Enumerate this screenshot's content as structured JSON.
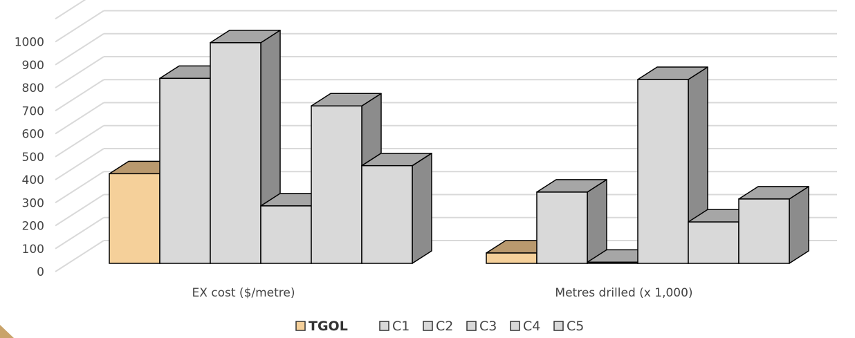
{
  "chart_data": {
    "type": "bar",
    "style": "3d-clustered-column",
    "categories": [
      "EX cost ($/metre)",
      "Metres drilled (x 1,000)"
    ],
    "series": [
      {
        "name": "TGOL",
        "values": [
          390,
          45
        ],
        "color": "#f5d09a",
        "top_color": "#b9996e",
        "bold_legend": true
      },
      {
        "name": "C1",
        "values": [
          805,
          310
        ],
        "color": "#d9d9d9"
      },
      {
        "name": "C2",
        "values": [
          960,
          5
        ],
        "color": "#d9d9d9"
      },
      {
        "name": "C3",
        "values": [
          250,
          800
        ],
        "color": "#d9d9d9"
      },
      {
        "name": "C4",
        "values": [
          685,
          180
        ],
        "color": "#d9d9d9"
      },
      {
        "name": "C5",
        "values": [
          425,
          280
        ],
        "color": "#d9d9d9"
      }
    ],
    "yticks": [
      0,
      100,
      200,
      300,
      400,
      500,
      600,
      700,
      800,
      900,
      1000
    ],
    "ylim": [
      0,
      1100
    ],
    "grid": true,
    "legend_position": "bottom",
    "colors": {
      "side": "#8c8c8c",
      "top": "#a6a6a6",
      "outline": "#000000",
      "grid": "#d9d9d9"
    }
  }
}
